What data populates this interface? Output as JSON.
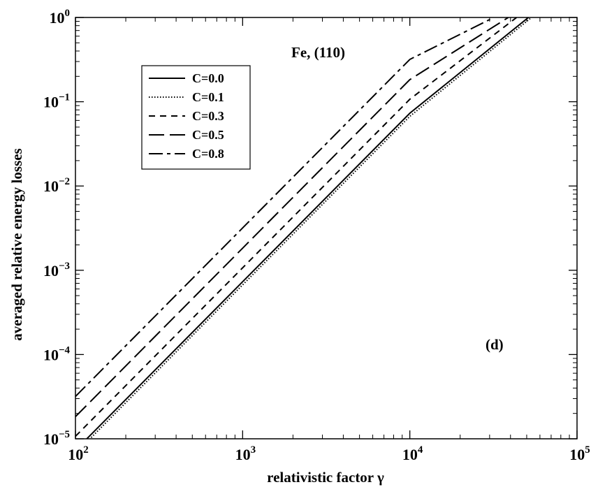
{
  "chart_data": {
    "type": "line",
    "title": "",
    "xlabel": "relativistic factor γ",
    "ylabel": "averaged relative energy losses",
    "xscale": "log",
    "yscale": "log",
    "xlim": [
      100,
      100000
    ],
    "ylim": [
      1e-05,
      1
    ],
    "x_ticks": [
      {
        "value": 100,
        "base": "10",
        "exp": "2"
      },
      {
        "value": 1000,
        "base": "10",
        "exp": "3"
      },
      {
        "value": 10000,
        "base": "10",
        "exp": "4"
      },
      {
        "value": 100000,
        "base": "10",
        "exp": "5"
      }
    ],
    "y_ticks": [
      {
        "value": 1e-05,
        "base": "10",
        "exp": "−5"
      },
      {
        "value": 0.0001,
        "base": "10",
        "exp": "−4"
      },
      {
        "value": 0.001,
        "base": "10",
        "exp": "−3"
      },
      {
        "value": 0.01,
        "base": "10",
        "exp": "−2"
      },
      {
        "value": 0.1,
        "base": "10",
        "exp": "−1"
      },
      {
        "value": 1,
        "base": "10",
        "exp": "0"
      }
    ],
    "grid": false,
    "legend_position": "top-left",
    "annotations": [
      "Fe, (110)",
      "(d)"
    ],
    "series": [
      {
        "name": "C=0.0",
        "dash": "solid",
        "x": [
          100,
          1000,
          10000,
          51200
        ],
        "y": [
          7.31e-06,
          0.000731,
          0.0731,
          1
        ]
      },
      {
        "name": "C=0.1",
        "dash": "dotted",
        "x": [
          100,
          1000,
          10000,
          53400
        ],
        "y": [
          6.71e-06,
          0.000671,
          0.0671,
          1
        ]
      },
      {
        "name": "C=0.3",
        "dash": "dashed",
        "x": [
          100,
          1000,
          10000,
          43500
        ],
        "y": [
          1.07e-05,
          0.00107,
          0.107,
          1
        ]
      },
      {
        "name": "C=0.5",
        "dash": "long-dash",
        "x": [
          100,
          1000,
          10000,
          38800
        ],
        "y": [
          1.83e-05,
          0.00183,
          0.183,
          1
        ]
      },
      {
        "name": "C=0.8",
        "dash": "dash-dot",
        "x": [
          100,
          1000,
          10000,
          31800
        ],
        "y": [
          3.18e-05,
          0.00318,
          0.318,
          1
        ]
      }
    ]
  }
}
